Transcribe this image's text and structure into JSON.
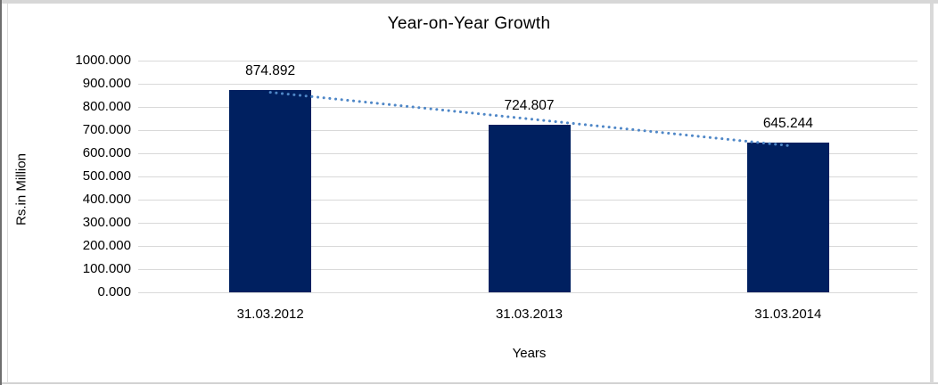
{
  "chart_data": {
    "type": "bar",
    "title": "Year-on-Year Growth",
    "xlabel": "Years",
    "ylabel": "Rs.in Million",
    "categories": [
      "31.03.2012",
      "31.03.2013",
      "31.03.2014"
    ],
    "values": [
      874.892,
      724.807,
      645.244
    ],
    "data_labels": [
      "874.892",
      "724.807",
      "645.244"
    ],
    "ylim": [
      0,
      1000
    ],
    "ytick_step": 100,
    "ytick_labels": [
      "1000.000",
      "900.000",
      "800.000",
      "700.000",
      "600.000",
      "500.000",
      "400.000",
      "300.000",
      "200.000",
      "100.000",
      "0.000"
    ],
    "grid": true,
    "legend": "none",
    "trendline": {
      "type": "linear",
      "style": "dotted"
    }
  },
  "colors": {
    "bar": "#002060",
    "trendline": "#4f87c7",
    "gridline": "#d9d9d9",
    "text": "#000000",
    "background": "#ffffff"
  }
}
